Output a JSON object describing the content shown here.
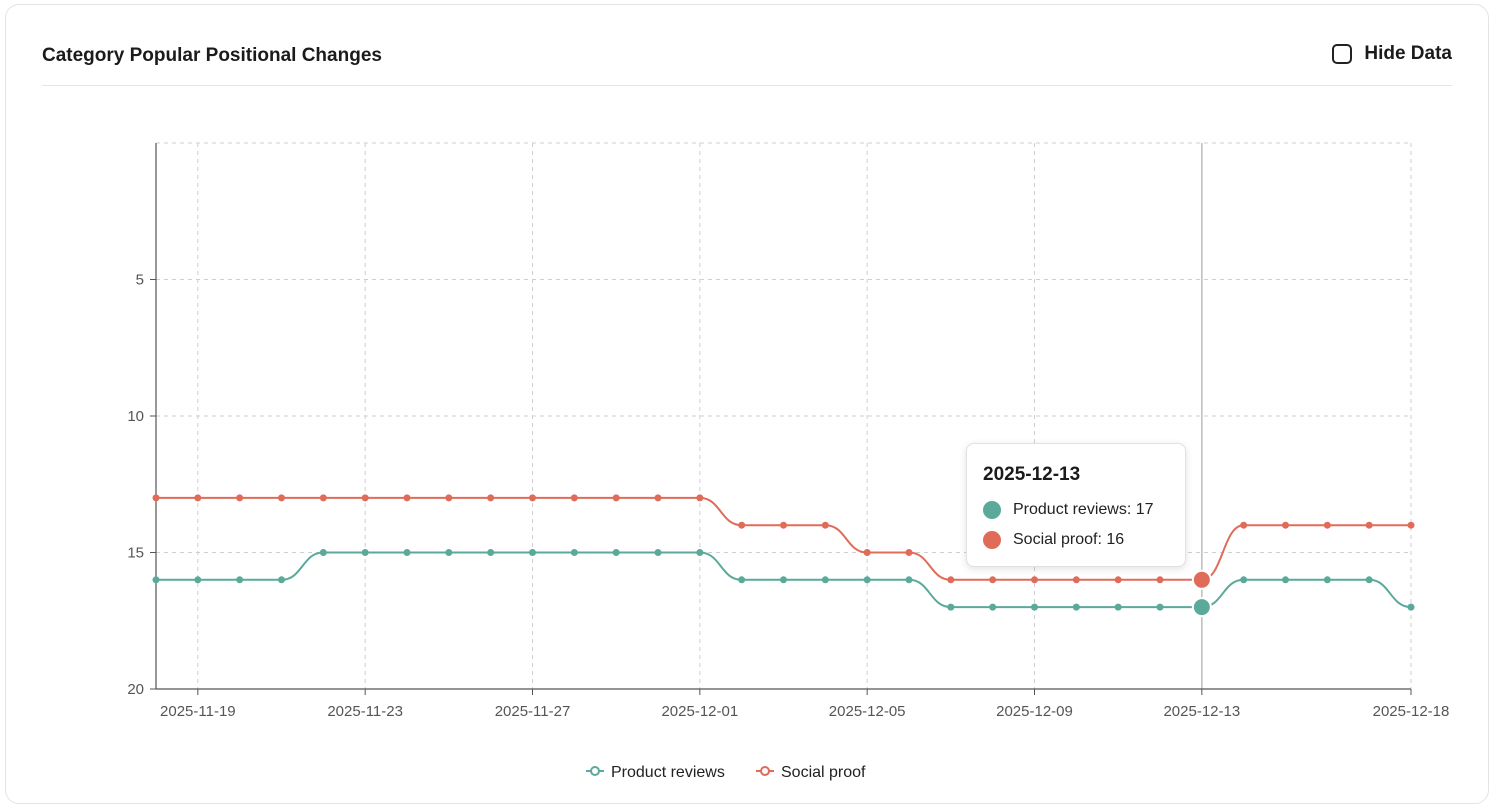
{
  "header": {
    "title": "Category Popular Positional Changes",
    "hide_data_label": "Hide Data"
  },
  "colors": {
    "product_reviews": "#5aa99b",
    "social_proof": "#e06b59",
    "grid": "#cfcfcf",
    "axis": "#555555"
  },
  "chart_data": {
    "type": "line",
    "title": "",
    "xlabel": "",
    "ylabel": "",
    "y_inverted": true,
    "ylim": [
      0,
      20
    ],
    "y_ticks": [
      5,
      10,
      15,
      20
    ],
    "x_tick_labels": [
      "2025-11-19",
      "2025-11-23",
      "2025-11-27",
      "2025-12-01",
      "2025-12-05",
      "2025-12-09",
      "2025-12-13",
      "2025-12-18"
    ],
    "grid": true,
    "legend_position": "bottom-center",
    "x": [
      "2025-11-18",
      "2025-11-19",
      "2025-11-20",
      "2025-11-21",
      "2025-11-22",
      "2025-11-23",
      "2025-11-24",
      "2025-11-25",
      "2025-11-26",
      "2025-11-27",
      "2025-11-28",
      "2025-11-29",
      "2025-11-30",
      "2025-12-01",
      "2025-12-02",
      "2025-12-03",
      "2025-12-04",
      "2025-12-05",
      "2025-12-06",
      "2025-12-07",
      "2025-12-08",
      "2025-12-09",
      "2025-12-10",
      "2025-12-11",
      "2025-12-12",
      "2025-12-13",
      "2025-12-14",
      "2025-12-15",
      "2025-12-16",
      "2025-12-17",
      "2025-12-18"
    ],
    "series": [
      {
        "name": "Product reviews",
        "values": [
          16,
          16,
          16,
          16,
          15,
          15,
          15,
          15,
          15,
          15,
          15,
          15,
          15,
          15,
          16,
          16,
          16,
          16,
          16,
          17,
          17,
          17,
          17,
          17,
          17,
          17,
          16,
          16,
          16,
          16,
          17
        ]
      },
      {
        "name": "Social proof",
        "values": [
          13,
          13,
          13,
          13,
          13,
          13,
          13,
          13,
          13,
          13,
          13,
          13,
          13,
          13,
          14,
          14,
          14,
          15,
          15,
          16,
          16,
          16,
          16,
          16,
          16,
          16,
          14,
          14,
          14,
          14,
          14
        ]
      }
    ],
    "tooltip": {
      "date": "2025-12-13",
      "rows": [
        {
          "label": "Product reviews: 17"
        },
        {
          "label": "Social proof: 16"
        }
      ]
    }
  }
}
